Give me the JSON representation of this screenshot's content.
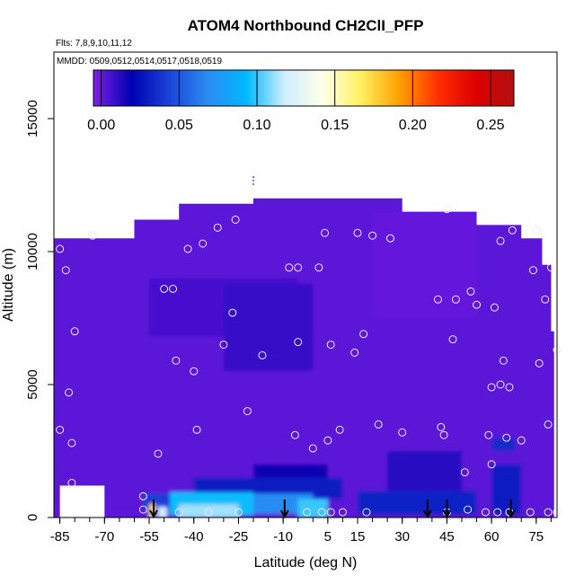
{
  "chart_data": {
    "type": "heatmap",
    "title": "ATOM4 Northbound CH2ClI_PFP",
    "flights_note": "Flts: 7,8,9,10,11,12",
    "dates_note": "MMDD: 0509,0512,0514,0517,0518,0519",
    "xlabel": "Latitude (deg N)",
    "ylabel": "Altitude (m)",
    "xlim": [
      -87,
      82
    ],
    "ylim": [
      0,
      17500
    ],
    "x_ticks": [
      -85,
      -70,
      -55,
      -40,
      -25,
      -10,
      5,
      15,
      30,
      45,
      60,
      75
    ],
    "x_tick_labels": [
      "-85",
      "-70",
      "-55",
      "-40",
      "-25",
      "-10",
      "5",
      "15",
      "30",
      "45",
      "60",
      "75"
    ],
    "y_ticks": [
      0,
      5000,
      10000,
      15000
    ],
    "y_tick_labels": [
      "0",
      "5000",
      "10000",
      "15000"
    ],
    "colorbar": {
      "range": [
        -0.005,
        0.265
      ],
      "ticks": [
        0.0,
        0.05,
        0.1,
        0.15,
        0.2,
        0.25
      ],
      "tick_labels": [
        "0.00",
        "0.05",
        "0.10",
        "0.15",
        "0.20",
        "0.25"
      ],
      "colors": [
        "#7f1fe8",
        "#0000b0",
        "#1c44d8",
        "#2a8cf2",
        "#00b8ff",
        "#cfeeff",
        "#ffffe8",
        "#fff060",
        "#ffa000",
        "#ff3000",
        "#dd0000",
        "#b01010"
      ]
    },
    "coverage_outline": [
      [
        -87,
        0
      ],
      [
        -87,
        10500
      ],
      [
        -60,
        10500
      ],
      [
        -60,
        11200
      ],
      [
        -45,
        11200
      ],
      [
        -45,
        11800
      ],
      [
        -20,
        11800
      ],
      [
        -20,
        12000
      ],
      [
        30,
        12000
      ],
      [
        30,
        11500
      ],
      [
        55,
        11500
      ],
      [
        55,
        11000
      ],
      [
        70,
        11000
      ],
      [
        70,
        10500
      ],
      [
        77,
        10500
      ],
      [
        77,
        9500
      ],
      [
        80,
        9500
      ],
      [
        80,
        7000
      ],
      [
        81,
        7000
      ],
      [
        81,
        0
      ]
    ],
    "missing_patches": [
      [
        -85,
        0,
        -70,
        1200
      ]
    ],
    "samples": [
      [
        -85,
        10100
      ],
      [
        -85,
        3300
      ],
      [
        -83,
        9300
      ],
      [
        -82,
        4700
      ],
      [
        -81,
        2800
      ],
      [
        -81,
        1300
      ],
      [
        -80,
        7000
      ],
      [
        -74,
        10600
      ],
      [
        -57,
        800
      ],
      [
        -57,
        300
      ],
      [
        -52,
        2400
      ],
      [
        -50,
        8600
      ],
      [
        -47,
        8600
      ],
      [
        -46,
        5900
      ],
      [
        -45,
        200
      ],
      [
        -42,
        10100
      ],
      [
        -40,
        5500
      ],
      [
        -39,
        3300
      ],
      [
        -37,
        10300
      ],
      [
        -35,
        200
      ],
      [
        -32,
        10900
      ],
      [
        -30,
        6500
      ],
      [
        -27,
        7700
      ],
      [
        -26,
        11200
      ],
      [
        -25,
        200
      ],
      [
        -22,
        4000
      ],
      [
        -17,
        6100
      ],
      [
        -8,
        9400
      ],
      [
        -6,
        3100
      ],
      [
        -5,
        6600
      ],
      [
        -5,
        9400
      ],
      [
        -2,
        200
      ],
      [
        0,
        2600
      ],
      [
        2,
        9400
      ],
      [
        3,
        200
      ],
      [
        4,
        10700
      ],
      [
        5,
        2900
      ],
      [
        6,
        6500
      ],
      [
        6,
        200
      ],
      [
        9,
        3300
      ],
      [
        10,
        200
      ],
      [
        14,
        6200
      ],
      [
        15,
        10700
      ],
      [
        17,
        6900
      ],
      [
        18,
        200
      ],
      [
        20,
        10600
      ],
      [
        22,
        3500
      ],
      [
        26,
        10500
      ],
      [
        30,
        3200
      ],
      [
        42,
        8200
      ],
      [
        43,
        3400
      ],
      [
        44,
        3100
      ],
      [
        45,
        200
      ],
      [
        45,
        11600
      ],
      [
        47,
        6700
      ],
      [
        48,
        8200
      ],
      [
        51,
        1700
      ],
      [
        52,
        300
      ],
      [
        53,
        8500
      ],
      [
        55,
        8000
      ],
      [
        58,
        200
      ],
      [
        59,
        3100
      ],
      [
        60,
        2000
      ],
      [
        60,
        4900
      ],
      [
        61,
        7900
      ],
      [
        62,
        200
      ],
      [
        63,
        10400
      ],
      [
        63,
        5000
      ],
      [
        64,
        5900
      ],
      [
        65,
        3000
      ],
      [
        66,
        4900
      ],
      [
        66,
        200
      ],
      [
        67,
        10800
      ],
      [
        70,
        2900
      ],
      [
        73,
        200
      ],
      [
        74,
        9300
      ],
      [
        75,
        10800
      ],
      [
        76,
        5800
      ],
      [
        78,
        8200
      ],
      [
        79,
        3500
      ],
      [
        79,
        200
      ],
      [
        80,
        9400
      ],
      [
        82,
        200
      ],
      [
        82,
        6300
      ]
    ],
    "profile_marks": [
      -53.5,
      -9.5,
      38.5,
      45,
      66.5
    ],
    "profile_marker_top": 12500
  }
}
